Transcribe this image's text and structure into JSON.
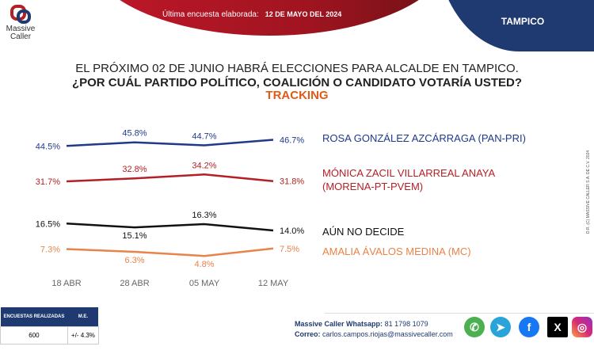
{
  "header": {
    "survey_label": "Última encuesta elaborada:",
    "survey_date": "12 DE MAYO DEL 2024",
    "city": "TAMPICO",
    "logo": "Massive Caller"
  },
  "title": {
    "line1": "EL PRÓXIMO 02 DE JUNIO HABRÁ ELECCIONES PARA ALCALDE EN TAMPICO.",
    "line2": "¿POR CUÁL PARTIDO POLÍTICO, COALICIÓN O CANDIDATO VOTARÍA USTED?",
    "line3": "TRACKING"
  },
  "chart_data": {
    "type": "line",
    "categories": [
      "18 ABR",
      "28 ABR",
      "05 MAY",
      "12 MAY"
    ],
    "ylim": [
      0,
      50
    ],
    "grid": false,
    "series": [
      {
        "name": "ROSA GONZÁLEZ AZCÁRRAGA (PAN-PRI)",
        "color": "#1f3a8a",
        "values": [
          44.5,
          45.8,
          44.7,
          46.7
        ],
        "labels": [
          "44.5%",
          "45.8%",
          "44.7%",
          "46.7%"
        ]
      },
      {
        "name": "MÓNICA ZACIL VILLARREAL ANAYA (MORENA-PT-PVEM)",
        "color": "#b32025",
        "values": [
          31.7,
          32.8,
          34.2,
          31.8
        ],
        "labels": [
          "31.7%",
          "32.8%",
          "34.2%",
          "31.8%"
        ]
      },
      {
        "name": "AÚN NO DECIDE",
        "color": "#111111",
        "values": [
          16.5,
          15.1,
          16.3,
          14.0
        ],
        "labels": [
          "16.5%",
          "15.1%",
          "16.3%",
          "14.0%"
        ]
      },
      {
        "name": "AMALIA ÁVALOS MEDINA (MC)",
        "color": "#e8834a",
        "values": [
          7.3,
          6.3,
          4.8,
          7.5
        ],
        "labels": [
          "7.3%",
          "6.3%",
          "4.8%",
          "7.5%"
        ]
      }
    ]
  },
  "legend": {
    "s0": "ROSA GONZÁLEZ AZCÁRRAGA (PAN-PRI)",
    "s1a": "MÓNICA ZACIL VILLARREAL ANAYA",
    "s1b": "(MORENA-PT-PVEM)",
    "s2": "AÚN NO DECIDE",
    "s3": "AMALIA ÁVALOS MEDINA (MC)"
  },
  "copyright": "D.R. (C) MASSIVE CALLER S.A. DE C.V. 2024",
  "stats": {
    "h1": "ENCUESTAS REALIZADAS",
    "h2": "M.E.",
    "n": "600",
    "me": "+/- 4.3%"
  },
  "contact": {
    "wa_label": "Massive Caller Whatsapp:",
    "wa": "81 1798 1079",
    "mail_label": "Correo:",
    "mail": "carlos.campos.riojas@massivecaller.com"
  },
  "social": [
    "whatsapp-icon",
    "telegram-icon",
    "facebook-icon",
    "x-icon",
    "instagram-icon"
  ]
}
